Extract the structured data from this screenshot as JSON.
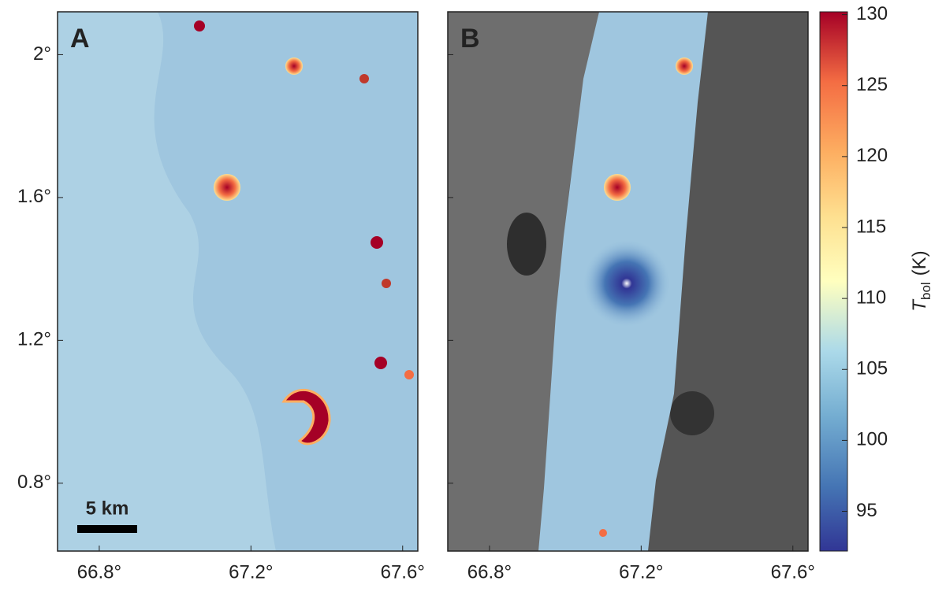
{
  "figure": {
    "panels": [
      {
        "label": "A"
      },
      {
        "label": "B"
      }
    ],
    "scale_bar": "5 km",
    "x_axis": {
      "lim": [
        66.69,
        67.64
      ],
      "ticks": [
        {
          "value": 66.8,
          "label": "66.8°"
        },
        {
          "value": 67.2,
          "label": "67.2°"
        },
        {
          "value": 67.6,
          "label": "67.6°"
        }
      ]
    },
    "y_axis": {
      "lim": [
        0.61,
        2.12
      ],
      "ticks": [
        {
          "value": 0.8,
          "label": "0.8°"
        },
        {
          "value": 1.2,
          "label": "1.2°"
        },
        {
          "value": 1.6,
          "label": "1.6°"
        },
        {
          "value": 2,
          "label": "2°"
        }
      ]
    },
    "colorbar": {
      "lim": [
        92.2,
        130.2
      ],
      "ticks": [
        95,
        100,
        105,
        110,
        115,
        120,
        125,
        130
      ],
      "label": {
        "symbol": "T",
        "subscript": "bol",
        "unit": "(K)"
      }
    }
  }
}
